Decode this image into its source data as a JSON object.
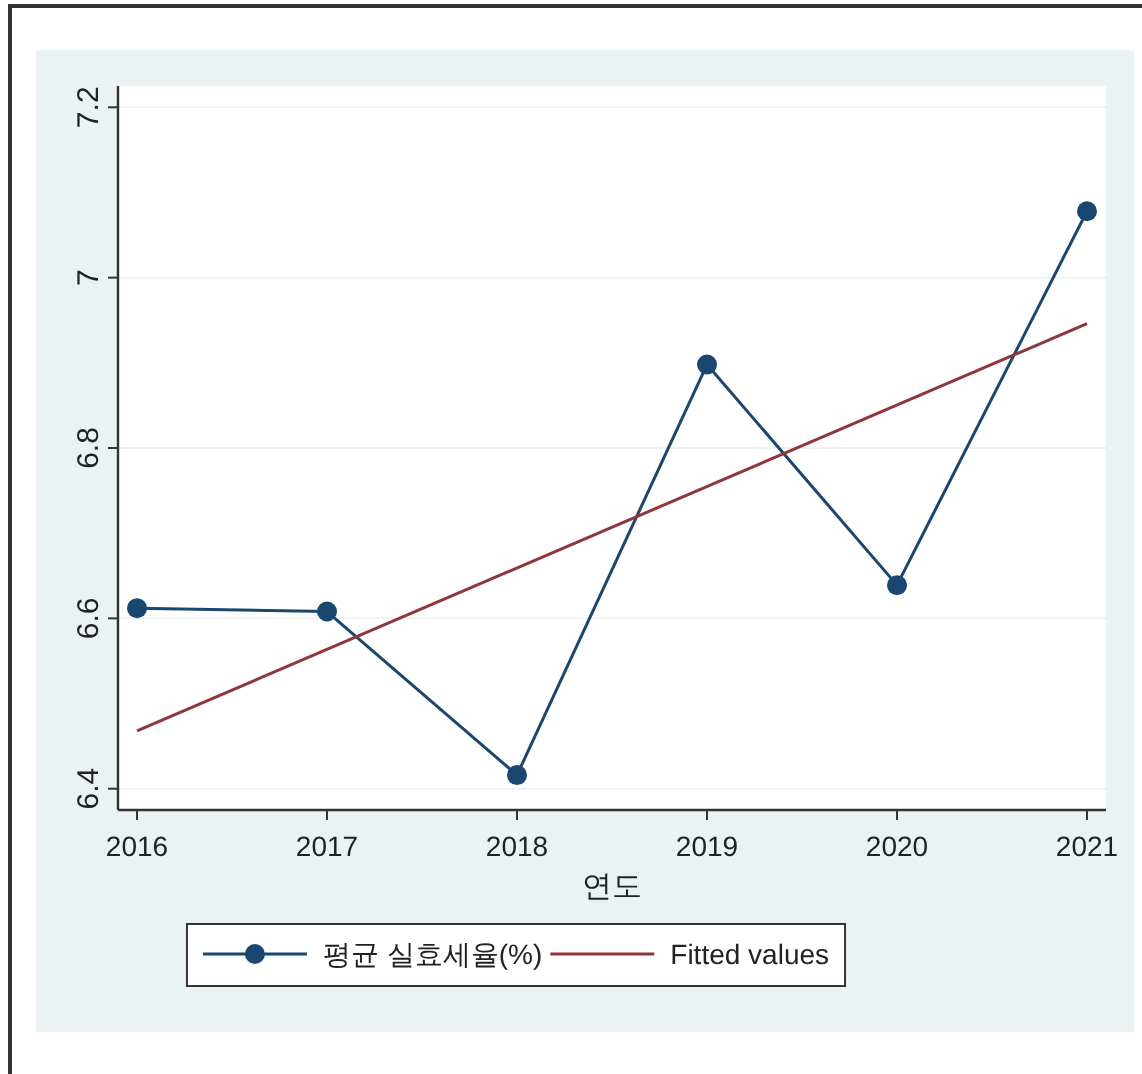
{
  "chart_data": {
    "type": "line",
    "xlabel": "연도",
    "x": [
      2016,
      2017,
      2018,
      2019,
      2020,
      2021
    ],
    "xlim": [
      2015.9,
      2021.1
    ],
    "xticks": [
      2016,
      2017,
      2018,
      2019,
      2020,
      2021
    ],
    "ylim": [
      6.375,
      7.225
    ],
    "yticks": [
      6.4,
      6.6,
      6.8,
      7,
      7.2
    ],
    "grid": "y",
    "legend": "bottom",
    "series": [
      {
        "name": "평균 실효세율(%)",
        "color": "#1a476f",
        "marker": "circle",
        "values": [
          6.612,
          6.608,
          6.416,
          6.898,
          6.639,
          7.078
        ]
      },
      {
        "name": "Fitted values",
        "color": "#90353b",
        "marker": "none",
        "x": [
          2016,
          2021
        ],
        "values": [
          6.468,
          6.946
        ]
      }
    ]
  }
}
